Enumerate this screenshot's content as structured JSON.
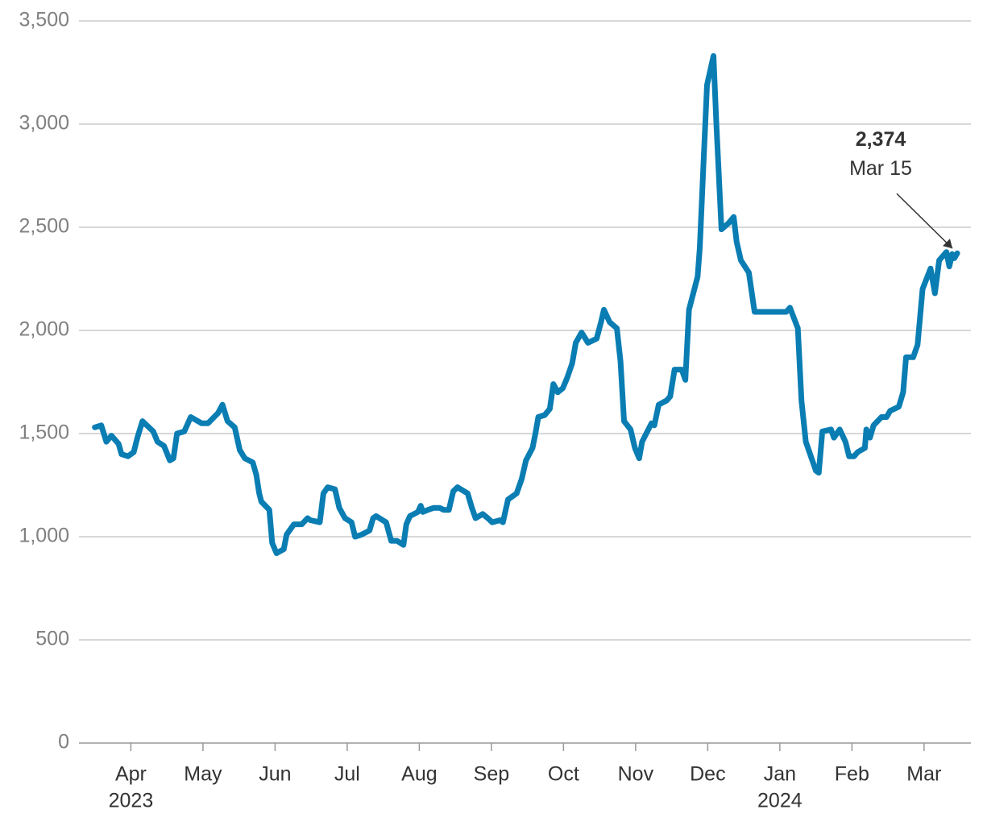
{
  "chart_data": {
    "type": "line",
    "color": "#0a7db3",
    "x": [
      3.5,
      3.59,
      3.66,
      3.73,
      3.83,
      3.87,
      3.96,
      4.04,
      4.09,
      4.16,
      4.31,
      4.37,
      4.46,
      4.54,
      4.59,
      4.64,
      4.74,
      4.83,
      4.98,
      5.07,
      5.21,
      5.27,
      5.34,
      5.44,
      5.51,
      5.58,
      5.69,
      5.74,
      5.78,
      5.81,
      5.92,
      5.96,
      6.02,
      6.12,
      6.16,
      6.26,
      6.37,
      6.45,
      6.49,
      6.62,
      6.67,
      6.73,
      6.83,
      6.89,
      6.97,
      7.06,
      7.11,
      7.2,
      7.31,
      7.36,
      7.4,
      7.54,
      7.61,
      7.69,
      7.78,
      7.82,
      7.87,
      7.98,
      8.02,
      8.05,
      8.12,
      8.2,
      8.28,
      8.34,
      8.41,
      8.47,
      8.53,
      8.67,
      8.73,
      8.78,
      8.88,
      8.95,
      9.01,
      9.12,
      9.16,
      9.23,
      9.35,
      9.42,
      9.48,
      9.57,
      9.61,
      9.65,
      9.74,
      9.81,
      9.86,
      9.92,
      9.99,
      10.05,
      10.12,
      10.17,
      10.25,
      10.34,
      10.46,
      10.52,
      10.56,
      10.64,
      10.74,
      10.79,
      10.84,
      10.93,
      10.99,
      11.05,
      11.09,
      11.22,
      11.26,
      11.32,
      11.43,
      11.48,
      11.54,
      11.64,
      11.69,
      11.74,
      11.86,
      11.89,
      11.94,
      11.99,
      12.08,
      12.12,
      12.19,
      12.29,
      12.36,
      12.4,
      12.46,
      12.57,
      12.65,
      12.73,
      13.09,
      13.14,
      13.25,
      13.3,
      13.36,
      13.5,
      13.54,
      13.59,
      13.71,
      13.75,
      13.83,
      13.91,
      13.96,
      14.03,
      14.08,
      14.18,
      14.2,
      14.25,
      14.3,
      14.41,
      14.48,
      14.53,
      14.65,
      14.71,
      14.75,
      14.85,
      14.91,
      14.98,
      15.09,
      15.15,
      15.21,
      15.31,
      15.35,
      15.39,
      15.42,
      15.46
    ],
    "values": [
      1530,
      1540,
      1460,
      1490,
      1450,
      1400,
      1390,
      1410,
      1480,
      1560,
      1510,
      1460,
      1440,
      1370,
      1380,
      1500,
      1510,
      1580,
      1550,
      1550,
      1600,
      1640,
      1560,
      1530,
      1420,
      1380,
      1360,
      1300,
      1210,
      1170,
      1130,
      970,
      920,
      940,
      1010,
      1060,
      1060,
      1090,
      1080,
      1070,
      1210,
      1240,
      1230,
      1140,
      1090,
      1070,
      1000,
      1010,
      1030,
      1090,
      1100,
      1070,
      980,
      980,
      960,
      1060,
      1100,
      1120,
      1150,
      1120,
      1130,
      1140,
      1140,
      1130,
      1130,
      1220,
      1240,
      1210,
      1140,
      1090,
      1110,
      1090,
      1070,
      1080,
      1070,
      1180,
      1210,
      1280,
      1370,
      1430,
      1500,
      1580,
      1590,
      1620,
      1740,
      1700,
      1720,
      1770,
      1840,
      1940,
      1990,
      1940,
      1960,
      2040,
      2100,
      2040,
      2010,
      1850,
      1560,
      1520,
      1430,
      1380,
      1460,
      1550,
      1540,
      1640,
      1660,
      1680,
      1810,
      1810,
      1760,
      2100,
      2260,
      2400,
      2800,
      3190,
      3330,
      3000,
      2490,
      2520,
      2550,
      2430,
      2340,
      2280,
      2090,
      2090,
      2090,
      2110,
      2010,
      1660,
      1460,
      1320,
      1310,
      1510,
      1520,
      1480,
      1520,
      1460,
      1390,
      1390,
      1410,
      1430,
      1520,
      1480,
      1540,
      1580,
      1580,
      1610,
      1630,
      1700,
      1870,
      1870,
      1930,
      2200,
      2300,
      2180,
      2340,
      2380,
      2310,
      2370,
      2350,
      2374
    ],
    "xlim": [
      3.28,
      15.65
    ],
    "xticks": [
      {
        "value": 4,
        "label": "Apr"
      },
      {
        "value": 5,
        "label": "May"
      },
      {
        "value": 6,
        "label": "Jun"
      },
      {
        "value": 7,
        "label": "Jul"
      },
      {
        "value": 8,
        "label": "Aug"
      },
      {
        "value": 9,
        "label": "Sep"
      },
      {
        "value": 10,
        "label": "Oct"
      },
      {
        "value": 11,
        "label": "Nov"
      },
      {
        "value": 12,
        "label": "Dec"
      },
      {
        "value": 13,
        "label": "Jan"
      },
      {
        "value": 14,
        "label": "Feb"
      },
      {
        "value": 15,
        "label": "Mar"
      }
    ],
    "year_labels": [
      {
        "value": 4,
        "label": "2023"
      },
      {
        "value": 13,
        "label": "2024"
      }
    ],
    "ylim": [
      0,
      3500
    ],
    "yticks": [
      0,
      500,
      {
        "value": 1000,
        "label": "1,000"
      },
      {
        "value": 1500,
        "label": "1,500"
      },
      {
        "value": 2000,
        "label": "2,000"
      },
      {
        "value": 2500,
        "label": "2,500"
      },
      {
        "value": 3000,
        "label": "3,000"
      },
      {
        "value": 3500,
        "label": "3,500"
      }
    ],
    "grid": true,
    "annotation": {
      "x": 15.46,
      "value": 2374,
      "label": "2,374",
      "date": "Mar 15"
    }
  }
}
